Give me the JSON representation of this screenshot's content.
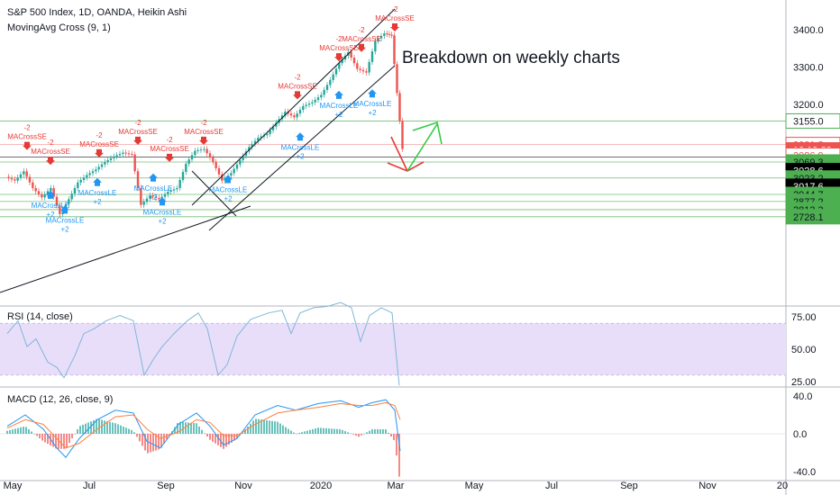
{
  "header": {
    "title": "S&P 500 Index, 1D, OANDA, Heikin Ashi",
    "indicator": "MovingAvg Cross (9, 1)"
  },
  "annotation": "Breakdown on weekly charts",
  "panes": {
    "rsi_label": "RSI (14, close)",
    "macd_label": "MACD (12, 26, close, 9)"
  },
  "colors": {
    "bull": "#26a69a",
    "bear": "#ef5350",
    "support_line": "#4caf50",
    "signal_short": "#e53935",
    "signal_long": "#2196f3",
    "rsi_line": "#7eb6d6",
    "rsi_band": "#e9defa",
    "macd_line": "#2196f3",
    "signal_line": "#ff7f3f"
  },
  "chart_data": [
    {
      "type": "candlestick",
      "x_ticks": [
        "May",
        "Jul",
        "Sep",
        "Nov",
        "2020",
        "Mar",
        "May",
        "Jul",
        "Sep",
        "Nov",
        "20"
      ],
      "y_ticks": [
        "3400.0",
        "3300.0",
        "3200.0"
      ],
      "ylim": [
        2700,
        3450
      ],
      "price_tags": [
        {
          "label": "3155.0",
          "value": 3155.0,
          "color": "#4caf50",
          "text_color": "#131722",
          "outline": true
        },
        {
          "label": "3091.8",
          "value": 3091.8,
          "color": "#ef5350",
          "text_color": "#ef5350",
          "outline": true
        },
        {
          "label": "10:19:29",
          "value": 3077.5,
          "color": "#ef5350",
          "text_color": "#ffffff",
          "outline": false
        },
        {
          "label": "3086.9",
          "value": 3063.0,
          "color": "#ef5350",
          "text_color": "#ef5350",
          "outline": true
        },
        {
          "label": "3069.3",
          "value": 3045.0,
          "color": "#4caf50",
          "text_color": "#131722",
          "outline": false
        },
        {
          "label": "3028.6",
          "value": 3022.0,
          "color": "#000000",
          "text_color": "#ffffff",
          "outline": false
        },
        {
          "label": "3023.2",
          "value": 3002.0,
          "color": "#4caf50",
          "text_color": "#131722",
          "outline": false
        },
        {
          "label": "3017.6",
          "value": 2980.0,
          "color": "#000000",
          "text_color": "#ffffff",
          "outline": false
        },
        {
          "label": "2944.7",
          "value": 2958.0,
          "color": "#4caf50",
          "text_color": "#131722",
          "outline": false
        },
        {
          "label": "2877.2",
          "value": 2939.0,
          "color": "#4caf50",
          "text_color": "#131722",
          "outline": false
        },
        {
          "label": "2813.3",
          "value": 2917.0,
          "color": "#4caf50",
          "text_color": "#131722",
          "outline": false
        },
        {
          "label": "2728.1",
          "value": 2898.0,
          "color": "#4caf50",
          "text_color": "#131722",
          "outline": false
        }
      ],
      "support_levels": [
        3155.0,
        3091.8,
        3069.3,
        3023.2,
        2944.7,
        2877.2,
        2813.3,
        2728.1
      ],
      "price_path": [
        [
          0,
          3005
        ],
        [
          10,
          2995
        ],
        [
          20,
          3020
        ],
        [
          30,
          2975
        ],
        [
          40,
          2950
        ],
        [
          50,
          2975
        ],
        [
          60,
          2905
        ],
        [
          70,
          2945
        ],
        [
          80,
          2990
        ],
        [
          90,
          3010
        ],
        [
          100,
          3025
        ],
        [
          110,
          3045
        ],
        [
          120,
          3060
        ],
        [
          130,
          3070
        ],
        [
          140,
          3065
        ],
        [
          150,
          2930
        ],
        [
          160,
          2955
        ],
        [
          170,
          2945
        ],
        [
          180,
          2965
        ],
        [
          190,
          2975
        ],
        [
          200,
          3040
        ],
        [
          210,
          3075
        ],
        [
          220,
          3080
        ],
        [
          230,
          3045
        ],
        [
          240,
          2995
        ],
        [
          250,
          3015
        ],
        [
          260,
          3050
        ],
        [
          270,
          3085
        ],
        [
          280,
          3110
        ],
        [
          290,
          3120
        ],
        [
          300,
          3150
        ],
        [
          310,
          3180
        ],
        [
          320,
          3165
        ],
        [
          330,
          3195
        ],
        [
          340,
          3205
        ],
        [
          350,
          3225
        ],
        [
          360,
          3265
        ],
        [
          370,
          3310
        ],
        [
          380,
          3340
        ],
        [
          390,
          3295
        ],
        [
          400,
          3285
        ],
        [
          410,
          3370
        ],
        [
          420,
          3390
        ],
        [
          428,
          3385
        ],
        [
          434,
          3230
        ],
        [
          440,
          3080
        ]
      ],
      "signals": [
        {
          "kind": "short",
          "label": "MACrossSE",
          "mult": "-2",
          "x": 22,
          "value": 3082
        },
        {
          "kind": "short",
          "label": "MACrossSE",
          "mult": "-2",
          "x": 48,
          "value": 3042
        },
        {
          "kind": "long",
          "label": "MACrossLE",
          "mult": "+2",
          "x": 48,
          "value": 2968
        },
        {
          "kind": "long",
          "label": "MACrossLE",
          "mult": "+2",
          "x": 64,
          "value": 2928
        },
        {
          "kind": "short",
          "label": "MACrossSE",
          "mult": "-2",
          "x": 102,
          "value": 3062
        },
        {
          "kind": "long",
          "label": "MACrossLE",
          "mult": "+2",
          "x": 100,
          "value": 3002
        },
        {
          "kind": "short",
          "label": "MACrossSE",
          "mult": "-2",
          "x": 145,
          "value": 3096
        },
        {
          "kind": "long",
          "label": "MACrossLE",
          "mult": "+2",
          "x": 162,
          "value": 3014
        },
        {
          "kind": "short",
          "label": "MACrossSE",
          "mult": "-2",
          "x": 180,
          "value": 3050
        },
        {
          "kind": "long",
          "label": "MACrossLE",
          "mult": "+2",
          "x": 172,
          "value": 2950
        },
        {
          "kind": "short",
          "label": "MACrossSE",
          "mult": "-2",
          "x": 218,
          "value": 3096
        },
        {
          "kind": "long",
          "label": "MACrossLE",
          "mult": "+2",
          "x": 245,
          "value": 3010
        },
        {
          "kind": "short",
          "label": "MACrossSE",
          "mult": "-2",
          "x": 322,
          "value": 3218
        },
        {
          "kind": "long",
          "label": "MACrossLE",
          "mult": "+2",
          "x": 325,
          "value": 3124
        },
        {
          "kind": "short",
          "label": "MACrossSE",
          "mult": "-2",
          "x": 368,
          "value": 3320
        },
        {
          "kind": "long",
          "label": "MACrossLE",
          "mult": "+2",
          "x": 368,
          "value": 3236
        },
        {
          "kind": "short",
          "label": "MACrossSE",
          "mult": "-2",
          "x": 393,
          "value": 3345
        },
        {
          "kind": "long",
          "label": "MACrossLE",
          "mult": "+2",
          "x": 405,
          "value": 3240
        },
        {
          "kind": "short",
          "label": "MACrossSE",
          "mult": "-2",
          "x": 430,
          "value": 3400
        }
      ]
    },
    {
      "type": "line",
      "name": "RSI",
      "y_ticks": [
        "75.00",
        "50.00",
        "25.00"
      ],
      "ylim": [
        20,
        90
      ],
      "band": [
        30,
        70
      ],
      "points": [
        [
          0,
          62
        ],
        [
          12,
          72
        ],
        [
          22,
          52
        ],
        [
          32,
          58
        ],
        [
          45,
          40
        ],
        [
          55,
          36
        ],
        [
          63,
          28
        ],
        [
          75,
          45
        ],
        [
          85,
          62
        ],
        [
          97,
          66
        ],
        [
          110,
          72
        ],
        [
          125,
          76
        ],
        [
          140,
          72
        ],
        [
          152,
          30
        ],
        [
          162,
          42
        ],
        [
          172,
          52
        ],
        [
          185,
          62
        ],
        [
          200,
          72
        ],
        [
          212,
          78
        ],
        [
          222,
          66
        ],
        [
          234,
          30
        ],
        [
          244,
          38
        ],
        [
          255,
          60
        ],
        [
          270,
          73
        ],
        [
          290,
          78
        ],
        [
          305,
          80
        ],
        [
          315,
          62
        ],
        [
          325,
          78
        ],
        [
          340,
          82
        ],
        [
          355,
          83
        ],
        [
          370,
          86
        ],
        [
          382,
          82
        ],
        [
          392,
          56
        ],
        [
          402,
          76
        ],
        [
          415,
          82
        ],
        [
          427,
          78
        ],
        [
          435,
          22
        ]
      ]
    },
    {
      "type": "histogram",
      "name": "MACD",
      "y_ticks": [
        "40.0",
        "0.0",
        "-40.0"
      ],
      "ylim": [
        -40,
        40
      ],
      "macd_points": [
        [
          0,
          8
        ],
        [
          20,
          20
        ],
        [
          40,
          5
        ],
        [
          55,
          -15
        ],
        [
          65,
          -25
        ],
        [
          80,
          -5
        ],
        [
          100,
          15
        ],
        [
          120,
          25
        ],
        [
          140,
          22
        ],
        [
          155,
          -8
        ],
        [
          170,
          -15
        ],
        [
          190,
          10
        ],
        [
          210,
          22
        ],
        [
          225,
          8
        ],
        [
          240,
          -12
        ],
        [
          255,
          -5
        ],
        [
          275,
          20
        ],
        [
          300,
          30
        ],
        [
          320,
          25
        ],
        [
          345,
          32
        ],
        [
          370,
          35
        ],
        [
          390,
          28
        ],
        [
          405,
          33
        ],
        [
          420,
          36
        ],
        [
          430,
          25
        ],
        [
          436,
          -18
        ]
      ],
      "signal_points": [
        [
          0,
          6
        ],
        [
          20,
          15
        ],
        [
          40,
          10
        ],
        [
          55,
          -5
        ],
        [
          65,
          -15
        ],
        [
          80,
          -10
        ],
        [
          100,
          5
        ],
        [
          120,
          18
        ],
        [
          140,
          20
        ],
        [
          155,
          5
        ],
        [
          170,
          -5
        ],
        [
          190,
          2
        ],
        [
          210,
          15
        ],
        [
          225,
          12
        ],
        [
          240,
          -2
        ],
        [
          255,
          -2
        ],
        [
          275,
          10
        ],
        [
          300,
          22
        ],
        [
          320,
          25
        ],
        [
          345,
          28
        ],
        [
          370,
          32
        ],
        [
          390,
          30
        ],
        [
          405,
          30
        ],
        [
          420,
          33
        ],
        [
          430,
          30
        ],
        [
          436,
          15
        ]
      ]
    }
  ]
}
